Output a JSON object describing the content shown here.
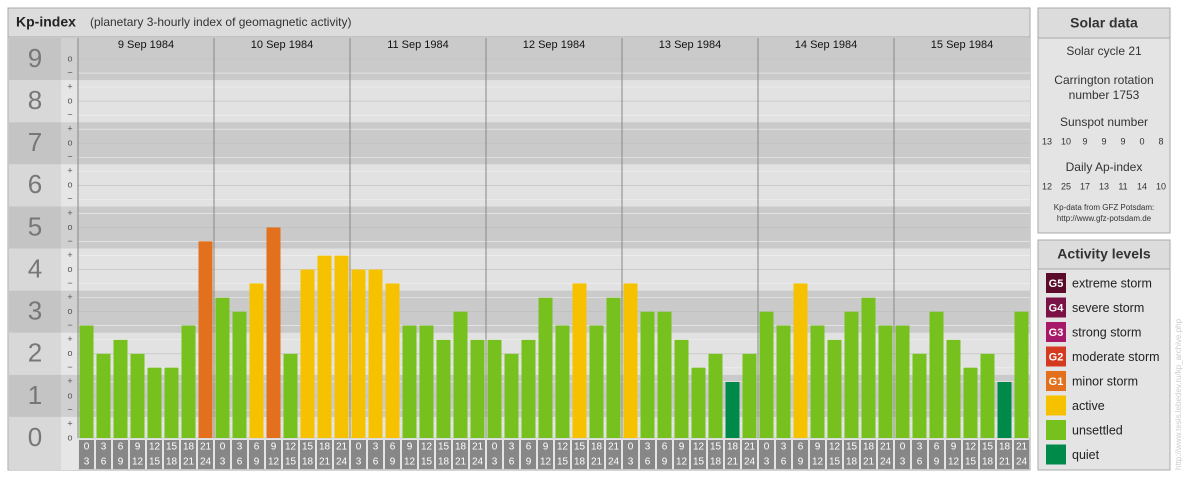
{
  "title": "Kp-index",
  "subtitle": "(planetary 3-hourly index of geomagnetic activity)",
  "chart_data": {
    "type": "bar",
    "ylim": [
      0,
      9
    ],
    "yticks": [
      0,
      1,
      2,
      3,
      4,
      5,
      6,
      7,
      8,
      9
    ],
    "minor_labels": [
      "−",
      "o",
      "+"
    ],
    "hours": [
      [
        0,
        3
      ],
      [
        3,
        6
      ],
      [
        6,
        9
      ],
      [
        9,
        12
      ],
      [
        12,
        15
      ],
      [
        15,
        18
      ],
      [
        18,
        21
      ],
      [
        21,
        24
      ]
    ],
    "days": [
      {
        "date": "9 Sep 1984",
        "values": [
          2.67,
          2,
          2.33,
          2,
          1.67,
          1.67,
          2.67,
          4.67
        ],
        "colors": [
          "#77c11f",
          "#77c11f",
          "#77c11f",
          "#77c11f",
          "#77c11f",
          "#77c11f",
          "#77c11f",
          "#e2701c"
        ]
      },
      {
        "date": "10 Sep 1984",
        "values": [
          3.33,
          3,
          3.67,
          5,
          2,
          4,
          4.33,
          4.33
        ],
        "colors": [
          "#77c11f",
          "#77c11f",
          "#f6c200",
          "#e2701c",
          "#77c11f",
          "#f6c200",
          "#f6c200",
          "#f6c200"
        ]
      },
      {
        "date": "11 Sep 1984",
        "values": [
          4,
          4,
          3.67,
          2.67,
          2.67,
          2.33,
          3,
          2.33
        ],
        "colors": [
          "#f6c200",
          "#f6c200",
          "#f6c200",
          "#77c11f",
          "#77c11f",
          "#77c11f",
          "#77c11f",
          "#77c11f"
        ]
      },
      {
        "date": "12 Sep 1984",
        "values": [
          2.33,
          2,
          2.33,
          3.33,
          2.67,
          3.67,
          2.67,
          3.33
        ],
        "colors": [
          "#77c11f",
          "#77c11f",
          "#77c11f",
          "#77c11f",
          "#77c11f",
          "#f6c200",
          "#77c11f",
          "#77c11f"
        ]
      },
      {
        "date": "13 Sep 1984",
        "values": [
          3.67,
          3,
          3,
          2.33,
          1.67,
          2,
          1.33,
          2
        ],
        "colors": [
          "#f6c200",
          "#77c11f",
          "#77c11f",
          "#77c11f",
          "#77c11f",
          "#77c11f",
          "#008a4a",
          "#77c11f"
        ]
      },
      {
        "date": "14 Sep 1984",
        "values": [
          3,
          2.67,
          3.67,
          2.67,
          2.33,
          3,
          3.33,
          2.67
        ],
        "colors": [
          "#77c11f",
          "#77c11f",
          "#f6c200",
          "#77c11f",
          "#77c11f",
          "#77c11f",
          "#77c11f",
          "#77c11f"
        ]
      },
      {
        "date": "15 Sep 1984",
        "values": [
          2.67,
          2,
          3,
          2.33,
          1.67,
          2,
          1.33,
          3
        ],
        "colors": [
          "#77c11f",
          "#77c11f",
          "#77c11f",
          "#77c11f",
          "#77c11f",
          "#77c11f",
          "#008a4a",
          "#77c11f"
        ]
      }
    ]
  },
  "solar": {
    "title": "Solar data",
    "cycle": "Solar cycle 21",
    "carrington": [
      "Carrington rotation",
      "number 1753"
    ],
    "sunspot_label": "Sunspot number",
    "sunspots": [
      13,
      10,
      9,
      9,
      9,
      0,
      8
    ],
    "ap_label": "Daily Ap-index",
    "ap": [
      12,
      25,
      17,
      13,
      11,
      14,
      10
    ],
    "source": [
      "Kp-data from GFZ Potsdam:",
      "http://www.gfz-potsdam.de"
    ]
  },
  "levels": {
    "title": "Activity levels",
    "items": [
      {
        "code": "G5",
        "label": "extreme storm",
        "color": "#5a0b2a"
      },
      {
        "code": "G4",
        "label": "severe storm",
        "color": "#7a1246"
      },
      {
        "code": "G3",
        "label": "strong storm",
        "color": "#a81868"
      },
      {
        "code": "G2",
        "label": "moderate storm",
        "color": "#d33a1f"
      },
      {
        "code": "G1",
        "label": "minor storm",
        "color": "#e2701c"
      },
      {
        "label": "active",
        "color": "#f6c200"
      },
      {
        "label": "unsettled",
        "color": "#77c11f"
      },
      {
        "label": "quiet",
        "color": "#008a4a"
      }
    ]
  },
  "watermark": "http://www.tesis.lebedev.ru/kp_archive.php"
}
